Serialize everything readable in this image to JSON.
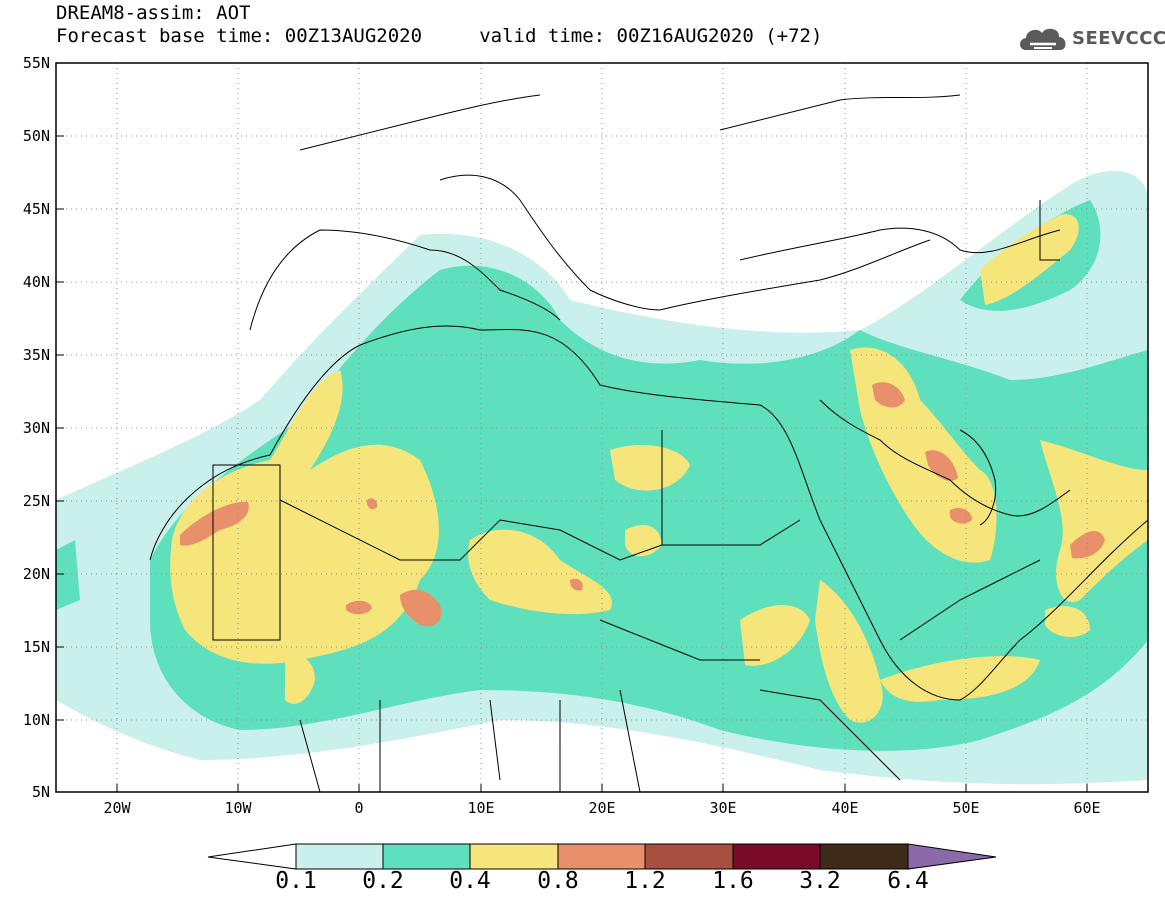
{
  "header": {
    "title_line1": "DREAM8-assim: AOT",
    "title_line2": "Forecast base time: 00Z13AUG2020     valid time: 00Z16AUG2020 (+72)",
    "logo_text": "SEEVCCC"
  },
  "axes": {
    "lat_labels": [
      "55N",
      "50N",
      "45N",
      "40N",
      "35N",
      "30N",
      "25N",
      "20N",
      "15N",
      "10N",
      "5N"
    ],
    "lat_values": [
      55,
      50,
      45,
      40,
      35,
      30,
      25,
      20,
      15,
      10,
      5
    ],
    "lon_labels": [
      "20W",
      "10W",
      "0",
      "10E",
      "20E",
      "30E",
      "40E",
      "50E",
      "60E"
    ],
    "lon_values": [
      -20,
      -10,
      0,
      10,
      20,
      30,
      40,
      50,
      60
    ],
    "lon_range": [
      -25,
      65
    ],
    "lat_range": [
      5,
      55
    ],
    "gridlines": "dotted"
  },
  "colorbar": {
    "labels": [
      "0.1",
      "0.2",
      "0.4",
      "0.8",
      "1.2",
      "1.6",
      "3.2",
      "6.4"
    ],
    "colors": [
      "#ffffff",
      "#c9f0ea",
      "#5ee0bc",
      "#f5e57a",
      "#e8906c",
      "#a85040",
      "#7a0a2a",
      "#3e2a18",
      "#8a6aa8"
    ]
  },
  "icons": {
    "logo": "cloud-icon"
  }
}
